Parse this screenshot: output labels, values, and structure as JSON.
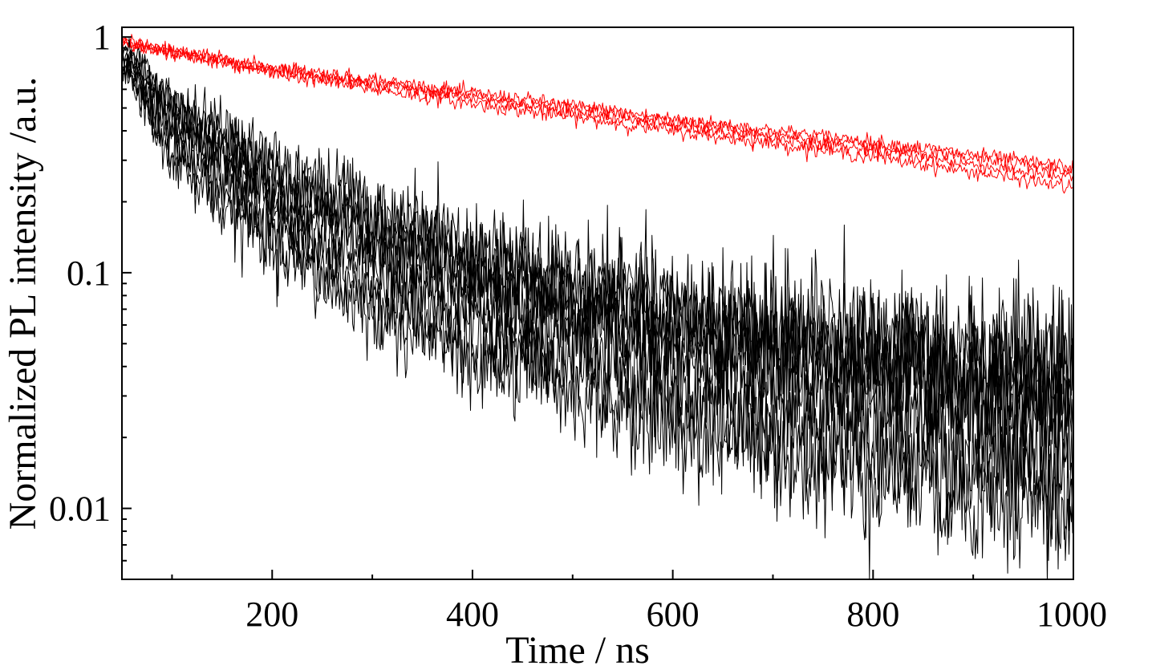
{
  "chart_data": {
    "type": "line",
    "title": "",
    "xlabel": "Time / ns",
    "ylabel": "Normalized PL intensity /a.u.",
    "xlim": [
      50,
      1000
    ],
    "ylim": [
      0.005,
      1.1
    ],
    "yscale": "log",
    "x_ticks": [
      200,
      400,
      600,
      800,
      1000
    ],
    "x_tick_labels": [
      "200",
      "400",
      "600",
      "800",
      "1000"
    ],
    "x_minor_ticks": [
      100,
      300,
      500,
      700,
      900
    ],
    "y_ticks": [
      1,
      0.1,
      0.01
    ],
    "y_tick_labels": [
      "1",
      "0.1",
      "0.01"
    ],
    "y_minor_ticks": [
      0.9,
      0.8,
      0.7,
      0.6,
      0.5,
      0.4,
      0.3,
      0.2,
      0.09,
      0.08,
      0.07,
      0.06,
      0.05,
      0.04,
      0.03,
      0.02,
      0.009,
      0.008,
      0.007,
      0.006,
      0.005
    ],
    "grid": false,
    "legend": "none",
    "series": [
      {
        "color": "#ff0000",
        "x": [
          50,
          200,
          400,
          600,
          800,
          1000
        ],
        "values": [
          0.95,
          0.72,
          0.55,
          0.42,
          0.33,
          0.25
        ]
      },
      {
        "color": "#ff0000",
        "x": [
          50,
          200,
          400,
          600,
          800,
          1000
        ],
        "values": [
          0.93,
          0.75,
          0.58,
          0.45,
          0.36,
          0.28
        ]
      },
      {
        "color": "#ff0000",
        "x": [
          50,
          200,
          400,
          600,
          800,
          1000
        ],
        "values": [
          0.97,
          0.7,
          0.52,
          0.4,
          0.31,
          0.23
        ]
      },
      {
        "color": "#ff0000",
        "x": [
          50,
          200,
          400,
          600,
          800,
          1000
        ],
        "values": [
          0.94,
          0.73,
          0.56,
          0.44,
          0.34,
          0.27
        ]
      },
      {
        "color": "#000000",
        "x": [
          50,
          100,
          200,
          300,
          400,
          600,
          800,
          1000
        ],
        "values": [
          0.92,
          0.55,
          0.3,
          0.19,
          0.13,
          0.075,
          0.05,
          0.04
        ]
      },
      {
        "color": "#000000",
        "x": [
          50,
          100,
          200,
          300,
          400,
          600,
          800,
          1000
        ],
        "values": [
          0.9,
          0.52,
          0.27,
          0.17,
          0.115,
          0.068,
          0.046,
          0.036
        ]
      },
      {
        "color": "#000000",
        "x": [
          50,
          100,
          200,
          300,
          400,
          600,
          800,
          1000
        ],
        "values": [
          0.88,
          0.5,
          0.25,
          0.155,
          0.105,
          0.062,
          0.042,
          0.033
        ]
      },
      {
        "color": "#000000",
        "x": [
          50,
          100,
          200,
          300,
          400,
          600,
          800,
          1000
        ],
        "values": [
          0.87,
          0.47,
          0.23,
          0.14,
          0.095,
          0.057,
          0.039,
          0.03
        ]
      },
      {
        "color": "#000000",
        "x": [
          50,
          100,
          200,
          300,
          400,
          600,
          800,
          1000
        ],
        "values": [
          0.85,
          0.44,
          0.21,
          0.125,
          0.085,
          0.052,
          0.036,
          0.027
        ]
      },
      {
        "color": "#000000",
        "x": [
          50,
          100,
          200,
          300,
          400,
          600,
          800,
          1000
        ],
        "values": [
          0.83,
          0.41,
          0.19,
          0.112,
          0.077,
          0.047,
          0.033,
          0.025
        ]
      },
      {
        "color": "#000000",
        "x": [
          50,
          100,
          200,
          300,
          400,
          600,
          800,
          1000
        ],
        "values": [
          0.8,
          0.36,
          0.16,
          0.09,
          0.06,
          0.032,
          0.02,
          0.015
        ]
      },
      {
        "color": "#000000",
        "x": [
          50,
          100,
          200,
          300,
          400,
          600,
          800,
          1000
        ],
        "values": [
          0.78,
          0.33,
          0.14,
          0.078,
          0.05,
          0.027,
          0.017,
          0.012
        ]
      },
      {
        "color": "#000000",
        "x": [
          50,
          100,
          200,
          300,
          400,
          600,
          800,
          1000
        ],
        "values": [
          0.76,
          0.3,
          0.125,
          0.068,
          0.043,
          0.023,
          0.014,
          0.01
        ]
      }
    ]
  }
}
